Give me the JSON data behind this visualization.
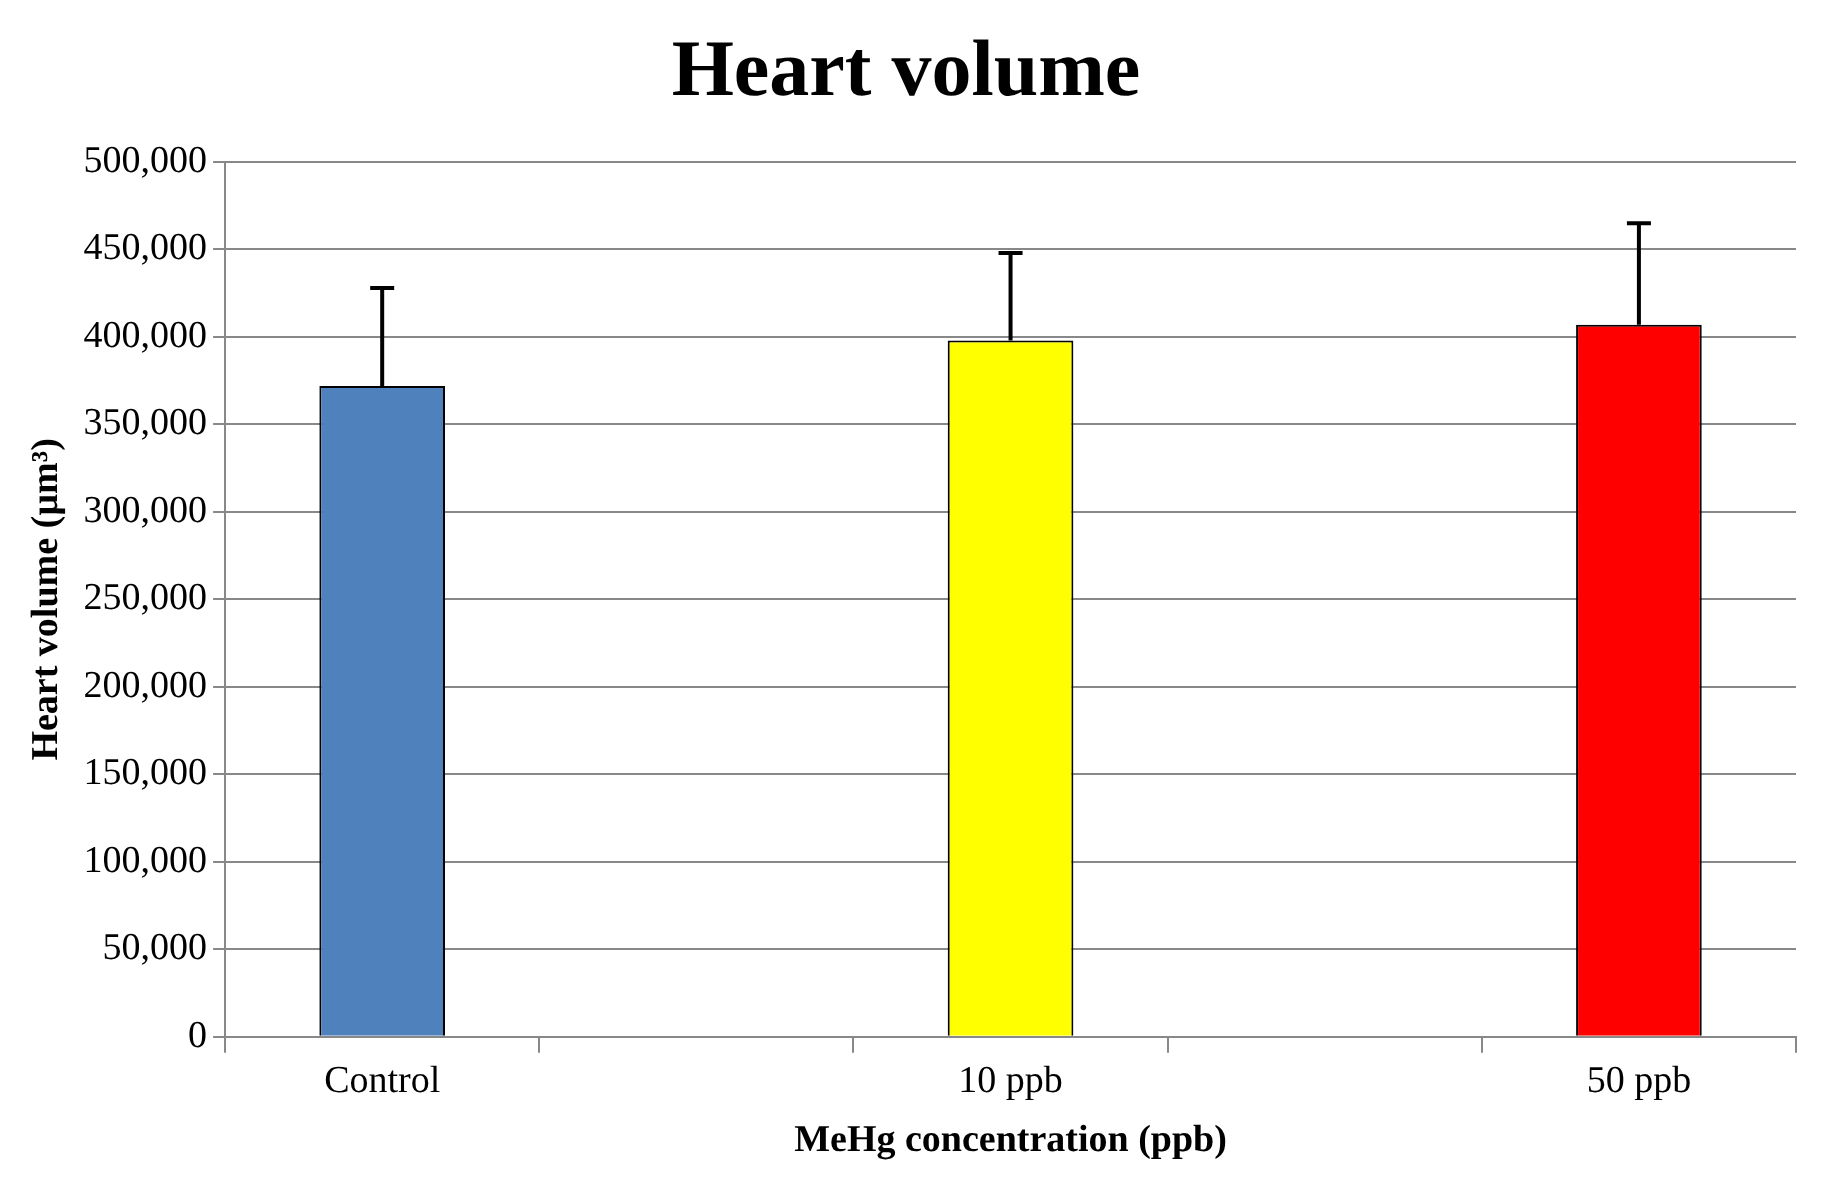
{
  "chart_data": {
    "type": "bar",
    "title": "Heart volume",
    "xlabel": "MeHg concentration (ppb)",
    "ylabel": "Heart volume (µm³)",
    "categories": [
      "Control",
      null,
      "10 ppb",
      null,
      "50 ppb"
    ],
    "values": [
      372000,
      null,
      398000,
      null,
      407000
    ],
    "colors": [
      "#4f81bd",
      null,
      "#ffff00",
      null,
      "#ff0000"
    ],
    "errors": [
      56000,
      null,
      50000,
      null,
      58000
    ],
    "ylim": [
      0,
      500000
    ],
    "yticks": [
      0,
      {
        "value": 50000,
        "label": "50,000"
      },
      {
        "value": 100000,
        "label": "100,000"
      },
      {
        "value": 150000,
        "label": "150,000"
      },
      {
        "value": 200000,
        "label": "200,000"
      },
      {
        "value": 250000,
        "label": "250,000"
      },
      {
        "value": 300000,
        "label": "300,000"
      },
      {
        "value": 350000,
        "label": "350,000"
      },
      {
        "value": 400000,
        "label": "400,000"
      },
      {
        "value": 450000,
        "label": "450,000"
      },
      {
        "value": 500000,
        "label": "500,000"
      }
    ],
    "grid": "y",
    "legend": false
  }
}
